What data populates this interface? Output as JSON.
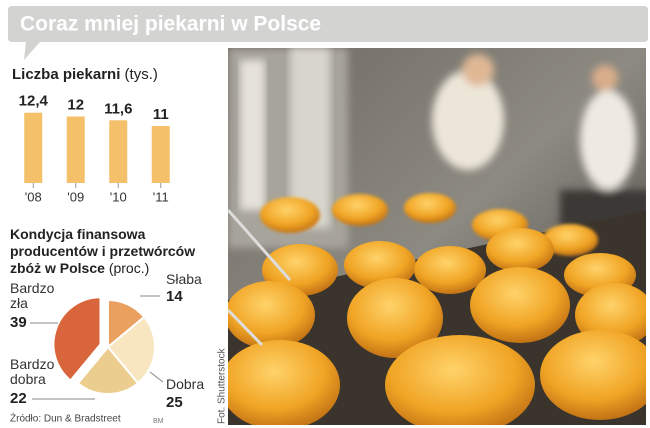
{
  "header": {
    "title": "Coraz mniej piekarni w Polsce"
  },
  "chart_data": [
    {
      "type": "bar",
      "title": "Liczba piekarni",
      "unit": "(tys.)",
      "categories": [
        "'08",
        "'09",
        "'10",
        "'11"
      ],
      "values": [
        12.4,
        12,
        11.6,
        11
      ],
      "value_labels": [
        "12,4",
        "12",
        "11,6",
        "11"
      ],
      "color": "#f4c06a",
      "ylim": [
        5,
        13
      ]
    },
    {
      "type": "pie",
      "title": "Kondycja finansowa producentów i przetwórców zbóż w Polsce",
      "unit": "(proc.)",
      "categories": [
        "Słaba",
        "Dobra",
        "Bardzo dobra",
        "Bardzo zła"
      ],
      "values": [
        14,
        25,
        22,
        39
      ],
      "colors": [
        "#eaa160",
        "#f7e6c0",
        "#ebcd8f",
        "#d9653c"
      ],
      "explode": [
        false,
        false,
        false,
        true
      ]
    }
  ],
  "source": "Źródło: Dun & Bradstreet",
  "initials": "BM",
  "photo_credit": "Fot. Shutterstock"
}
